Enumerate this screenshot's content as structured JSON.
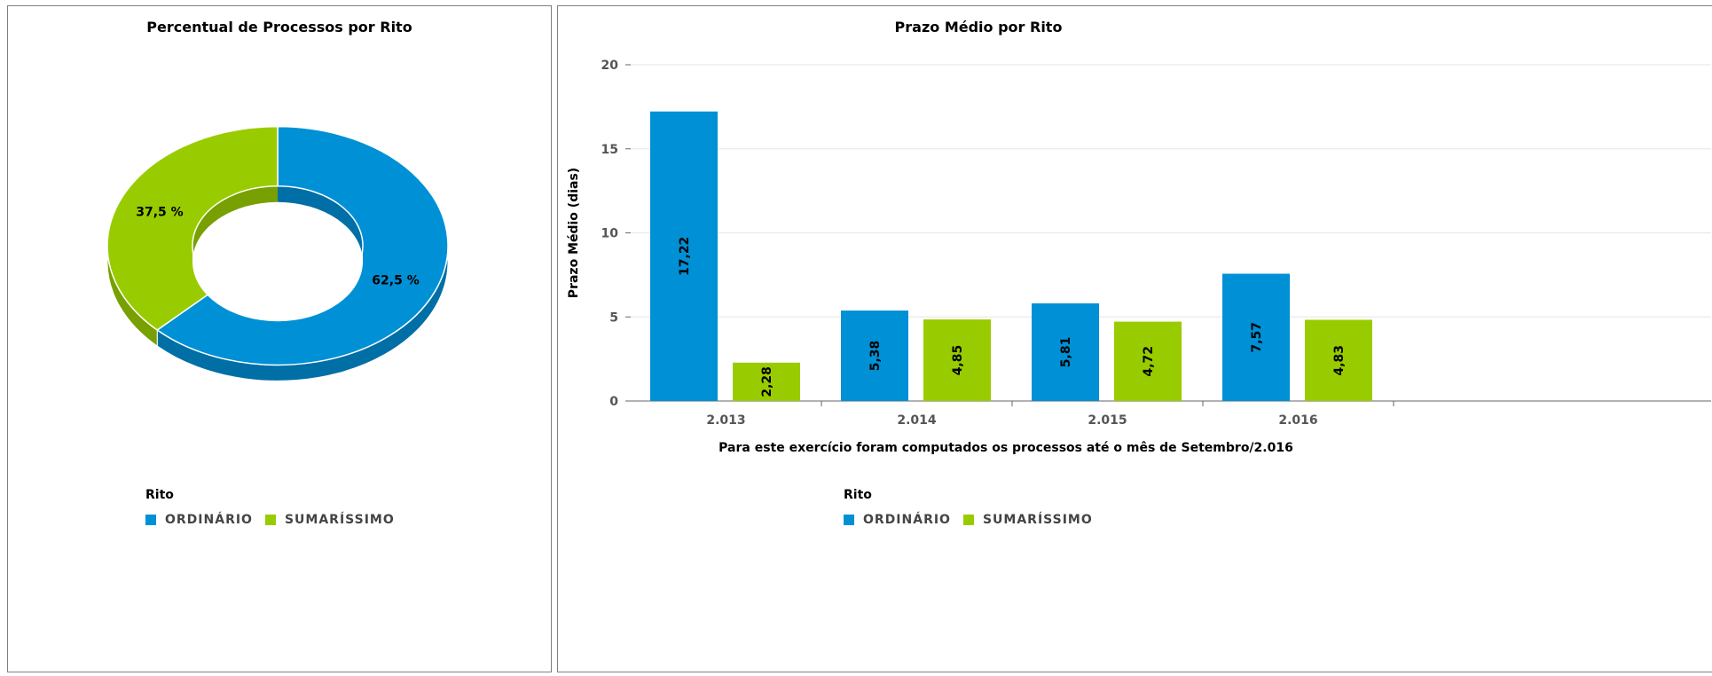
{
  "colors": {
    "ordinario": "#0090d6",
    "ordinario_dark": "#006fa6",
    "sumarissimo": "#99cc00",
    "sumarissimo_dark": "#77a000"
  },
  "legend": {
    "title": "Rito",
    "items": [
      "ORDINÁRIO",
      "SUMARÍSSIMO"
    ]
  },
  "chart_data": [
    {
      "type": "pie",
      "title": "Percentual de Processos por Rito",
      "labels": [
        "ORDINÁRIO",
        "SUMARÍSSIMO"
      ],
      "values": [
        62.5,
        37.5
      ],
      "value_labels": [
        "62,5 %",
        "37,5 %"
      ],
      "legend_title": "Rito"
    },
    {
      "type": "bar",
      "title": "Prazo Médio por Rito",
      "categories": [
        "2.013",
        "2.014",
        "2.015",
        "2.016"
      ],
      "series": [
        {
          "name": "ORDINÁRIO",
          "values": [
            17.22,
            5.38,
            5.81,
            7.57
          ],
          "labels": [
            "17,22",
            "5,38",
            "5,81",
            "7,57"
          ]
        },
        {
          "name": "SUMARÍSSIMO",
          "values": [
            2.28,
            4.85,
            4.72,
            4.83
          ],
          "labels": [
            "2,28",
            "4,85",
            "4,72",
            "4,83"
          ]
        }
      ],
      "ylabel": "Prazo Médio (dias)",
      "xlabel": "Para este exercício foram computados os processos até o mês de Setembro/2.016",
      "ylim": [
        0,
        20
      ],
      "yticks": [
        0,
        5,
        10,
        15,
        20
      ],
      "grid": true,
      "legend_title": "Rito"
    }
  ]
}
